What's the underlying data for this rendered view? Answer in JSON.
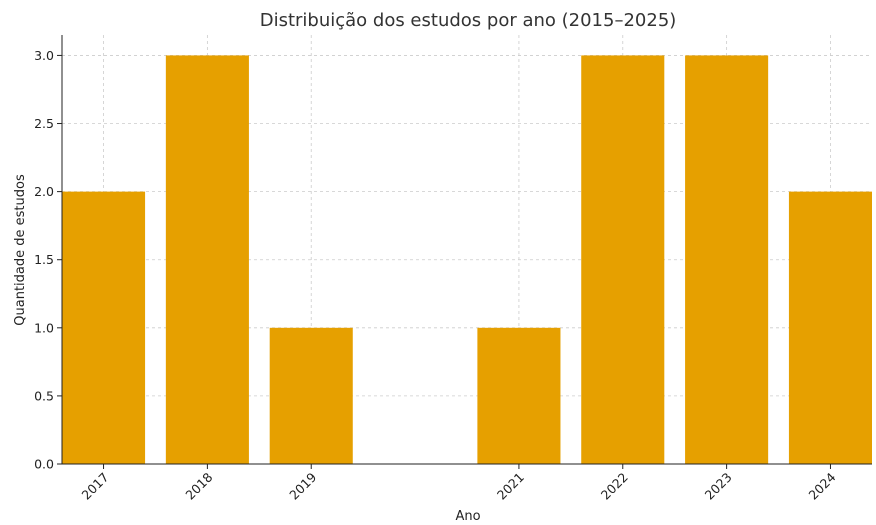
{
  "chart_data": {
    "type": "bar",
    "title": "Distribuição dos estudos por ano (2015–2025)",
    "xlabel": "Ano",
    "ylabel": "Quantidade de estudos",
    "x": [
      2017,
      2018,
      2019,
      2021,
      2022,
      2023,
      2024
    ],
    "categories": [
      "2017",
      "2018",
      "2019",
      "2021",
      "2022",
      "2023",
      "2024"
    ],
    "values": [
      2,
      3,
      1,
      1,
      3,
      3,
      2
    ],
    "xlim": [
      2016.6,
      2024.4
    ],
    "ylim": [
      0,
      3.15
    ],
    "yticks": [
      "0.0",
      "0.5",
      "1.0",
      "1.5",
      "2.0",
      "2.5",
      "3.0"
    ],
    "grid": true,
    "bar_color": "#E6A000"
  }
}
